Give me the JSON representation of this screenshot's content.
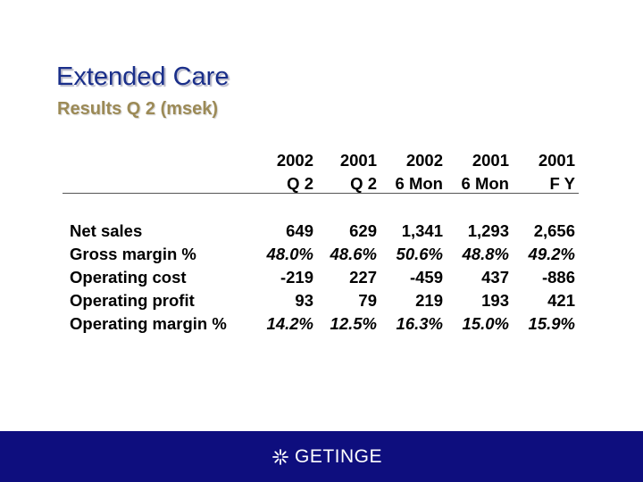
{
  "slide": {
    "title": "Extended Care",
    "subtitle": "Results Q 2 (msek)"
  },
  "table": {
    "columns": [
      {
        "line1": "2002",
        "line2": "Q 2"
      },
      {
        "line1": "2001",
        "line2": "Q 2"
      },
      {
        "line1": "2002",
        "line2": "6 Mon"
      },
      {
        "line1": "2001",
        "line2": "6 Mon"
      },
      {
        "line1": "2001",
        "line2": "F Y"
      }
    ],
    "rows": [
      {
        "label": "Net sales",
        "values": [
          "649",
          "629",
          "1,341",
          "1,293",
          "2,656"
        ]
      },
      {
        "label": "Gross margin %",
        "values": [
          "48.0%",
          "48.6%",
          "50.6%",
          "48.8%",
          "49.2%"
        ]
      },
      {
        "label": "Operating cost",
        "values": [
          "-219",
          "227",
          "-459",
          "437",
          "-886"
        ]
      },
      {
        "label": "Operating profit",
        "values": [
          "93",
          "79",
          "219",
          "193",
          "421"
        ]
      },
      {
        "label": "Operating margin %",
        "values": [
          "14.2%",
          "12.5%",
          "16.3%",
          "15.0%",
          "15.9%"
        ]
      }
    ]
  },
  "footer": {
    "logo_text": "GETINGE",
    "logo_icon": "asterisk-logo-icon",
    "background_color": "#0e0e7e"
  }
}
